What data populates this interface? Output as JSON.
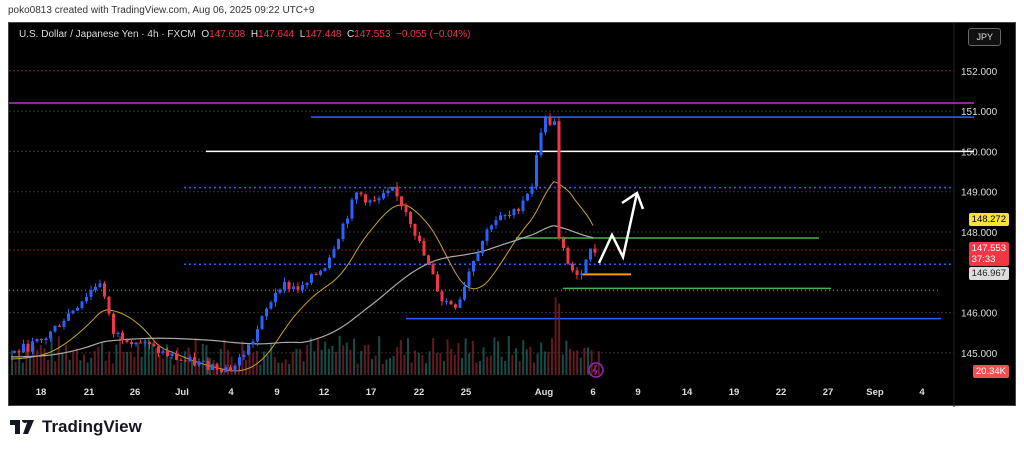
{
  "credit": "poko0813 created with TradingView.com, Aug 06, 2025 09:22 UTC+9",
  "legend": {
    "symbol": "U.S. Dollar / Japanese Yen · 4h · FXCM",
    "o_label": "O",
    "o": "147.608",
    "h_label": "H",
    "h": "147.644",
    "l_label": "L",
    "l": "147.448",
    "c_label": "C",
    "c": "147.553",
    "change": "−0.055 (−0.04%)"
  },
  "currency_button": "JPY",
  "price_axis": [
    "152.000",
    "151.000",
    "150.000",
    "149.000",
    "148.000",
    "146.000",
    "145.000"
  ],
  "price_tags": {
    "ma": "148.272",
    "last": "147.553",
    "countdown": "37:33",
    "ma2": "146.967",
    "volume": "20.34K"
  },
  "time_axis": [
    "18",
    "21",
    "26",
    "Jul",
    "4",
    "9",
    "12",
    "17",
    "22",
    "25",
    "Aug",
    "6",
    "9",
    "14",
    "19",
    "22",
    "27",
    "Sep",
    "4"
  ],
  "colors": {
    "up": "#2962ff",
    "down": "#f23645",
    "bg": "#000000"
  },
  "chart_data": {
    "type": "candlestick",
    "symbol": "USDJPY",
    "timeframe": "4h",
    "price_path": [
      145.0,
      145.3,
      146.8,
      145.5,
      145.3,
      145.0,
      144.8,
      144.6,
      145.3,
      146.7,
      146.6,
      147.2,
      149.0,
      148.7,
      149.0,
      148.5,
      147.5,
      146.3,
      146.2,
      147.3,
      148.3,
      148.4,
      149.2,
      150.8,
      150.7,
      147.8,
      147.3,
      146.8,
      147.5,
      147.55
    ],
    "levels": [
      152.0,
      151.2,
      150.85,
      150.0,
      149.1,
      147.85,
      147.2,
      146.97,
      146.6,
      146.55,
      145.85
    ]
  },
  "brand": "TradingView"
}
